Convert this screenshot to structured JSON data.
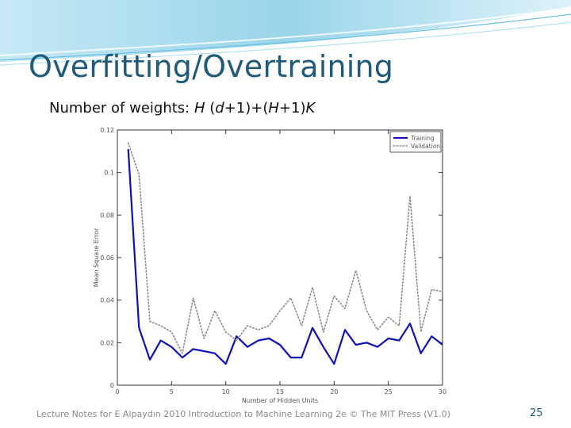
{
  "slide": {
    "title": "Overfitting/Overtraining",
    "subtitle": {
      "prefix": "Number of weights: ",
      "v1": "H",
      "t1": " (",
      "v2": "d",
      "t2": "+1)+(",
      "v3": "H",
      "t3": "+1)",
      "v4": "K"
    },
    "footer": "Lecture Notes for E Alpaydın 2010 Introduction to Machine Learning 2e © The MIT Press (V1.0)",
    "page_number": "25",
    "colors": {
      "title": "#1f5a78",
      "header_wave": "#8fd0e8",
      "training": "#1010b8",
      "validation": "#8c8c8c"
    }
  },
  "chart_data": {
    "type": "line",
    "title": "",
    "xlabel": "Number of Hidden Units",
    "ylabel": "Mean Square Error",
    "xlim": [
      0,
      30
    ],
    "ylim": [
      0,
      0.12
    ],
    "xticks": [
      0,
      5,
      10,
      15,
      20,
      25,
      30
    ],
    "xtick_labels": [
      "0",
      "5",
      "10",
      "15",
      "20",
      "25",
      "30"
    ],
    "yticks": [
      0,
      0.02,
      0.04,
      0.06,
      0.08,
      0.1,
      0.12
    ],
    "ytick_labels": [
      "0",
      "0.02",
      "0.04",
      "0.06",
      "0.08",
      "0.1",
      "0.12"
    ],
    "grid": false,
    "legend_position": "top-right",
    "x": [
      1,
      2,
      3,
      4,
      5,
      6,
      7,
      8,
      9,
      10,
      11,
      12,
      13,
      14,
      15,
      16,
      17,
      18,
      19,
      20,
      21,
      22,
      23,
      24,
      25,
      26,
      27,
      28,
      29,
      30
    ],
    "series": [
      {
        "name": "Training",
        "style": "solid",
        "values": [
          0.111,
          0.027,
          0.012,
          0.021,
          0.018,
          0.013,
          0.017,
          0.016,
          0.015,
          0.01,
          0.023,
          0.018,
          0.021,
          0.022,
          0.019,
          0.013,
          0.013,
          0.027,
          0.018,
          0.01,
          0.026,
          0.019,
          0.02,
          0.018,
          0.022,
          0.021,
          0.029,
          0.015,
          0.023,
          0.019
        ]
      },
      {
        "name": "Validation",
        "style": "dotted",
        "values": [
          0.114,
          0.099,
          0.03,
          0.028,
          0.025,
          0.015,
          0.041,
          0.022,
          0.035,
          0.025,
          0.021,
          0.028,
          0.026,
          0.028,
          0.035,
          0.041,
          0.028,
          0.046,
          0.025,
          0.042,
          0.036,
          0.054,
          0.035,
          0.026,
          0.032,
          0.028,
          0.089,
          0.025,
          0.045,
          0.044
        ]
      }
    ]
  }
}
